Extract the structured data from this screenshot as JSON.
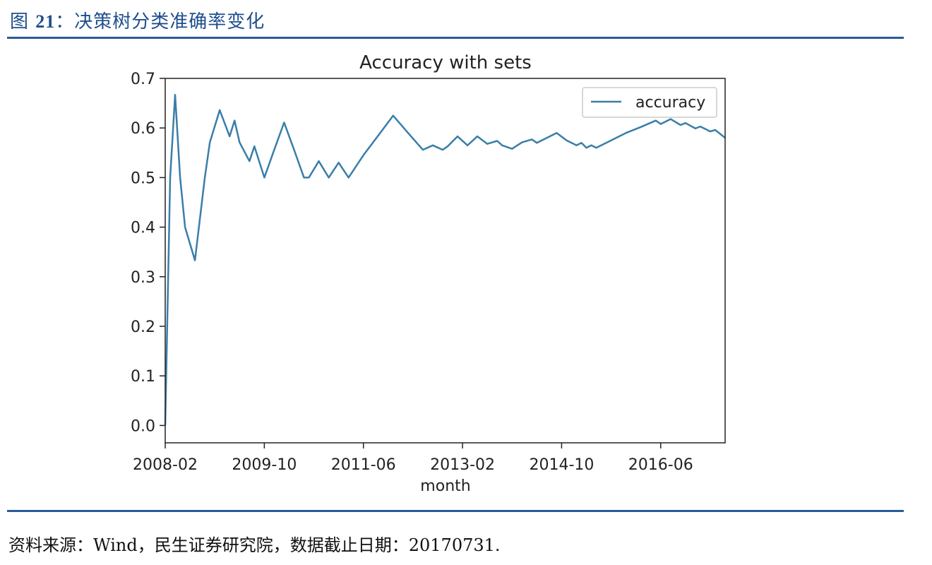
{
  "figure": {
    "label": "图",
    "number": "21",
    "separator": "：",
    "title": "决策树分类准确率变化"
  },
  "source_note": "资料来源：Wind，民生证券研究院，数据截止日期：20170731.",
  "colors": {
    "line": "#3a7ea8",
    "rule": "#2a5a9a",
    "caption": "#1f4e8c"
  },
  "chart_data": {
    "type": "line",
    "title": "Accuracy with sets",
    "xlabel": "month",
    "ylabel": "",
    "ylim": [
      -0.035,
      0.7
    ],
    "yticks": [
      0.0,
      0.1,
      0.2,
      0.3,
      0.4,
      0.5,
      0.6,
      0.7
    ],
    "ytick_labels": [
      "0.0",
      "0.1",
      "0.2",
      "0.3",
      "0.4",
      "0.5",
      "0.6",
      "0.7"
    ],
    "xlim": [
      "2008-02",
      "2017-07"
    ],
    "xticks": [
      "2008-02",
      "2009-10",
      "2011-06",
      "2013-02",
      "2014-10",
      "2016-06"
    ],
    "legend": {
      "position": "top-right",
      "entries": [
        "accuracy"
      ]
    },
    "grid": false,
    "series": [
      {
        "name": "accuracy",
        "x": [
          "2008-02",
          "2008-03",
          "2008-04",
          "2008-05",
          "2008-06",
          "2008-08",
          "2008-10",
          "2008-11",
          "2009-01",
          "2009-03",
          "2009-04",
          "2009-05",
          "2009-07",
          "2009-08",
          "2009-10",
          "2009-12",
          "2010-02",
          "2010-04",
          "2010-06",
          "2010-07",
          "2010-09",
          "2010-11",
          "2011-01",
          "2011-03",
          "2011-06",
          "2011-09",
          "2011-12",
          "2012-03",
          "2012-06",
          "2012-08",
          "2012-10",
          "2012-11",
          "2013-01",
          "2013-03",
          "2013-05",
          "2013-07",
          "2013-09",
          "2013-10",
          "2013-12",
          "2014-02",
          "2014-04",
          "2014-05",
          "2014-07",
          "2014-09",
          "2014-11",
          "2015-01",
          "2015-02",
          "2015-03",
          "2015-04",
          "2015-05",
          "2015-08",
          "2015-11",
          "2016-02",
          "2016-05",
          "2016-06",
          "2016-08",
          "2016-10",
          "2016-11",
          "2017-01",
          "2017-02",
          "2017-04",
          "2017-05",
          "2017-07"
        ],
        "values": [
          0.0,
          0.5,
          0.667,
          0.5,
          0.4,
          0.333,
          0.5,
          0.571,
          0.636,
          0.583,
          0.615,
          0.571,
          0.533,
          0.563,
          0.5,
          0.556,
          0.611,
          0.556,
          0.5,
          0.5,
          0.533,
          0.5,
          0.53,
          0.5,
          0.545,
          0.585,
          0.625,
          0.59,
          0.556,
          0.565,
          0.556,
          0.563,
          0.583,
          0.565,
          0.583,
          0.568,
          0.574,
          0.565,
          0.558,
          0.571,
          0.577,
          0.57,
          0.58,
          0.59,
          0.575,
          0.565,
          0.57,
          0.56,
          0.565,
          0.56,
          0.575,
          0.59,
          0.602,
          0.615,
          0.608,
          0.618,
          0.606,
          0.61,
          0.599,
          0.603,
          0.593,
          0.596,
          0.58
        ]
      }
    ]
  }
}
